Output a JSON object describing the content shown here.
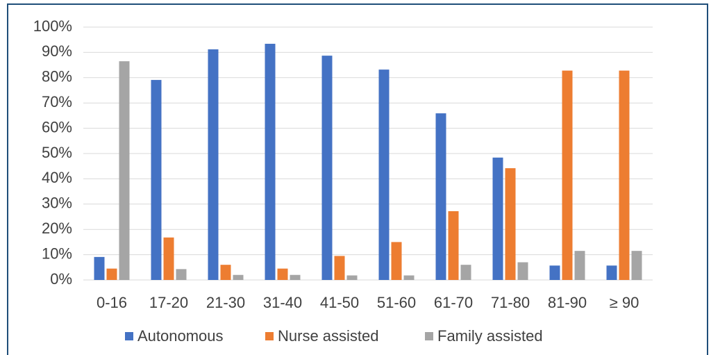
{
  "chart_data": {
    "type": "bar",
    "categories": [
      "0-16",
      "17-20",
      "21-30",
      "31-40",
      "41-50",
      "51-60",
      "61-70",
      "71-80",
      "81-90",
      "≥ 90"
    ],
    "series": [
      {
        "name": "Autonomous",
        "color": "#4472c4",
        "values": [
          9.1,
          79.1,
          91.2,
          93.4,
          88.7,
          83.2,
          65.9,
          48.4,
          5.7,
          5.7
        ]
      },
      {
        "name": "Nurse assisted",
        "color": "#ed7d31",
        "values": [
          4.5,
          16.8,
          6,
          4.5,
          9.5,
          15,
          27.2,
          44.2,
          82.8,
          82.8
        ]
      },
      {
        "name": "Family assisted",
        "color": "#a5a5a5",
        "values": [
          86.5,
          4.3,
          2,
          2,
          1.8,
          1.8,
          6,
          7,
          11.5,
          11.5
        ]
      }
    ],
    "ylim": [
      0,
      100
    ],
    "yticks": [
      {
        "value": 0,
        "label": "0%"
      },
      {
        "value": 10,
        "label": "10%"
      },
      {
        "value": 20,
        "label": "20%"
      },
      {
        "value": 30,
        "label": "30%"
      },
      {
        "value": 40,
        "label": "40%"
      },
      {
        "value": 50,
        "label": "50%"
      },
      {
        "value": 60,
        "label": "60%"
      },
      {
        "value": 70,
        "label": "70%"
      },
      {
        "value": 80,
        "label": "80%"
      },
      {
        "value": 90,
        "label": "90%"
      },
      {
        "value": 100,
        "label": "100%"
      }
    ],
    "grid": true,
    "legend": "bottom"
  }
}
